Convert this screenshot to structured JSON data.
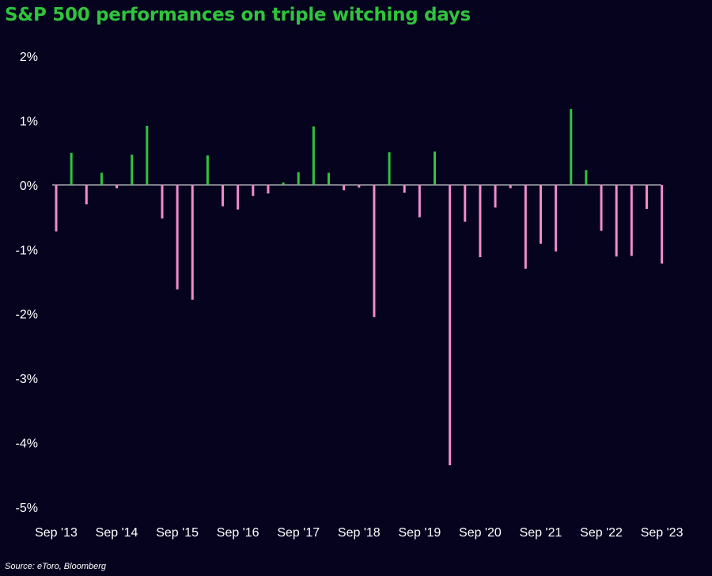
{
  "title": "S&P 500 performances on triple witching days",
  "source": "Source: eToro, Bloomberg",
  "colors": {
    "background": "#06031f",
    "title": "#2fc43c",
    "positive": "#2fc43c",
    "negative": "#f08ccc",
    "text": "#ffffff"
  },
  "chart_data": {
    "type": "bar",
    "title": "S&P 500 performances on triple witching days",
    "xlabel": "",
    "ylabel": "",
    "ylim": [
      -5,
      2
    ],
    "y_ticks": [
      "2%",
      "1%",
      "0%",
      "-1%",
      "-2%",
      "-3%",
      "-4%",
      "-5%"
    ],
    "y_tick_values": [
      2,
      1,
      0,
      -1,
      -2,
      -3,
      -4,
      -5
    ],
    "x_tick_labels": [
      "Sep '13",
      "Sep '14",
      "Sep '15",
      "Sep '16",
      "Sep '17",
      "Sep '18",
      "Sep '19",
      "Sep '20",
      "Sep '21",
      "Sep '22",
      "Sep '23"
    ],
    "x_tick_index": [
      0,
      4,
      8,
      12,
      16,
      20,
      24,
      28,
      32,
      36,
      40
    ],
    "grid": false,
    "legend": "none",
    "values": [
      -0.72,
      0.5,
      -0.3,
      0.19,
      -0.05,
      0.47,
      0.92,
      -0.52,
      -1.62,
      -1.78,
      0.46,
      -0.33,
      -0.38,
      -0.17,
      -0.13,
      0.04,
      0.2,
      0.91,
      0.19,
      -0.08,
      -0.04,
      -2.05,
      0.51,
      -0.12,
      -0.5,
      0.52,
      -4.35,
      -0.57,
      -1.12,
      -0.35,
      -0.05,
      -1.3,
      -0.91,
      -1.03,
      1.18,
      0.23,
      -0.71,
      -1.11,
      -1.1,
      -0.37,
      -1.22
    ]
  }
}
